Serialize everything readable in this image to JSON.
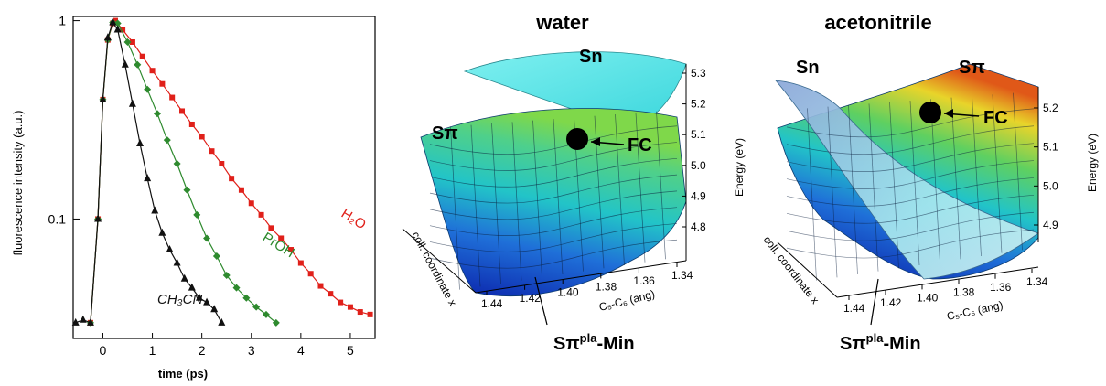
{
  "chart_data": [
    {
      "type": "scatter",
      "xlabel": "time (ps)",
      "ylabel": "fluorescence intensity (a.u.)",
      "xlim": [
        -0.6,
        5.5
      ],
      "ylim": [
        0.025,
        1.05
      ],
      "yscale": "log",
      "x_ticks": [
        "0",
        "1",
        "2",
        "3",
        "4",
        "5"
      ],
      "y_ticks": [
        "0.1",
        "1"
      ],
      "series": [
        {
          "name": "H₂O",
          "color": "#e0201a",
          "marker": "square",
          "x": [
            -0.25,
            -0.1,
            0.0,
            0.1,
            0.2,
            0.25,
            0.4,
            0.6,
            0.8,
            1.0,
            1.2,
            1.4,
            1.6,
            1.8,
            2.0,
            2.2,
            2.4,
            2.6,
            2.8,
            3.0,
            3.2,
            3.4,
            3.6,
            3.8,
            4.0,
            4.2,
            4.4,
            4.6,
            4.8,
            5.0,
            5.2,
            5.4
          ],
          "y": [
            0.03,
            0.1,
            0.4,
            0.8,
            0.97,
            1.0,
            0.9,
            0.78,
            0.66,
            0.56,
            0.48,
            0.41,
            0.35,
            0.3,
            0.26,
            0.22,
            0.19,
            0.16,
            0.14,
            0.12,
            0.105,
            0.09,
            0.08,
            0.07,
            0.06,
            0.053,
            0.046,
            0.042,
            0.038,
            0.036,
            0.034,
            0.033
          ]
        },
        {
          "name": "PrOH",
          "color": "#2e8a2e",
          "marker": "diamond",
          "x": [
            -0.25,
            -0.1,
            0.0,
            0.1,
            0.2,
            0.3,
            0.5,
            0.7,
            0.9,
            1.1,
            1.3,
            1.5,
            1.7,
            1.9,
            2.1,
            2.3,
            2.5,
            2.7,
            2.9,
            3.1,
            3.3,
            3.5
          ],
          "y": [
            0.03,
            0.1,
            0.4,
            0.8,
            0.98,
            0.97,
            0.78,
            0.6,
            0.45,
            0.34,
            0.25,
            0.19,
            0.14,
            0.105,
            0.08,
            0.065,
            0.052,
            0.045,
            0.04,
            0.036,
            0.033,
            0.03
          ]
        },
        {
          "name": "CH₃CN",
          "color": "#111111",
          "marker": "triangle",
          "x": [
            -0.55,
            -0.4,
            -0.25,
            -0.1,
            0.0,
            0.1,
            0.2,
            0.3,
            0.45,
            0.6,
            0.75,
            0.9,
            1.05,
            1.2,
            1.35,
            1.5,
            1.65,
            1.8,
            1.95,
            2.1,
            2.25,
            2.4
          ],
          "y": [
            0.03,
            0.031,
            0.03,
            0.1,
            0.4,
            0.82,
            0.98,
            0.9,
            0.6,
            0.38,
            0.24,
            0.16,
            0.11,
            0.085,
            0.07,
            0.06,
            0.05,
            0.045,
            0.04,
            0.038,
            0.035,
            0.03
          ]
        }
      ]
    },
    {
      "type": "surface3d",
      "title": "water",
      "ylabel": "Energy (eV)",
      "xlabel": "C₅-C₆ (ang)",
      "zlabel": "coll. coordinate x",
      "energy_ticks": [
        "4.8",
        "4.9",
        "5.0",
        "5.1",
        "5.2",
        "5.3"
      ],
      "bond_ticks": [
        "1.44",
        "1.42",
        "1.40",
        "1.38",
        "1.36",
        "1.34"
      ],
      "labels": {
        "upper": "Sn",
        "lower": "Sπ",
        "fc": "FC",
        "min_main": "Sπ",
        "min_sup": "pla",
        "min_tail": "-Min"
      }
    },
    {
      "type": "surface3d",
      "title": "acetonitrile",
      "ylabel": "Energy (eV)",
      "xlabel": "C₅-C₆ (ang)",
      "zlabel": "coll. coordinate x",
      "energy_ticks": [
        "4.9",
        "5.0",
        "5.1",
        "5.2"
      ],
      "bond_ticks": [
        "1.44",
        "1.42",
        "1.40",
        "1.38",
        "1.36",
        "1.34"
      ],
      "labels": {
        "left": "Sn",
        "right": "Sπ",
        "fc": "FC",
        "min_main": "Sπ",
        "min_sup": "pla",
        "min_tail": "-Min"
      }
    }
  ]
}
